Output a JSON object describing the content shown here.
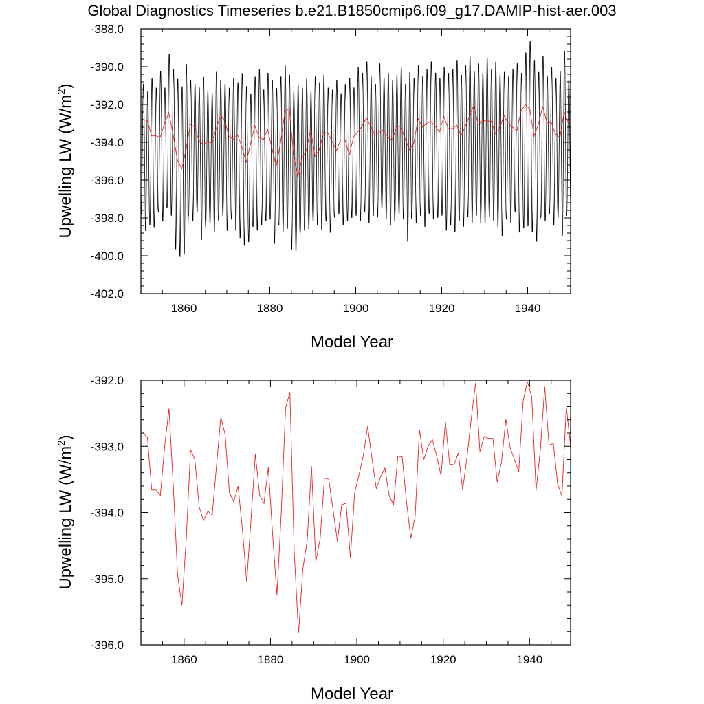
{
  "figure_title": "Global Diagnostics Timeseries b.e21.B1850cmip6.f09_g17.DAMIP-hist-aer.003",
  "colors": {
    "monthly": "#000000",
    "annual": "#e8201e"
  },
  "chart_data": [
    {
      "type": "line",
      "xlabel": "Model Year",
      "ylabel": "Upwelling LW (W/m2)",
      "ylabel_main": "Upwelling LW (W/m",
      "ylabel_sup": "2",
      "ylabel_end": ")",
      "xlim": [
        1850,
        1950
      ],
      "ylim": [
        -402,
        -388
      ],
      "xticks": [
        1860,
        1880,
        1900,
        1920,
        1940
      ],
      "xtick_labels": [
        "1860",
        "1880",
        "1900",
        "1920",
        "1940"
      ],
      "yticks": [
        -402,
        -400,
        -398,
        -396,
        -394,
        -392,
        -390,
        -388
      ],
      "ytick_labels": [
        "-402.0",
        "-400.0",
        "-398.0",
        "-396.0",
        "-394.0",
        "-392.0",
        "-390.0",
        "-388.0"
      ],
      "grid": false,
      "series": [
        {
          "style": "monthly",
          "seasonal_cycle": "annual",
          "start_year": 1850,
          "annual_minima": [
            -397.9,
            -398.8,
            -398.5,
            -398.6,
            -397.8,
            -398.3,
            -397.6,
            -398.0,
            -399.8,
            -400.2,
            -400.1,
            -398.0,
            -398.3,
            -397.8,
            -399.3,
            -398.6,
            -398.4,
            -398.9,
            -398.3,
            -398.0,
            -398.8,
            -398.2,
            -398.8,
            -399.2,
            -399.6,
            -399.4,
            -398.6,
            -398.8,
            -398.5,
            -398.3,
            -398.2,
            -399.5,
            -398.5,
            -398.9,
            -398.7,
            -399.8,
            -399.9,
            -398.9,
            -398.8,
            -398.7,
            -398.3,
            -398.5,
            -398.8,
            -398.3,
            -398.9,
            -398.1,
            -397.9,
            -398.5,
            -398.3,
            -398.1,
            -398.0,
            -398.3,
            -397.8,
            -398.4,
            -398.0,
            -398.1,
            -397.6,
            -398.2,
            -398.5,
            -398.3,
            -397.9,
            -398.2,
            -399.4,
            -397.8,
            -398.4,
            -398.0,
            -398.6,
            -397.9,
            -398.2,
            -398.1,
            -398.0,
            -398.8,
            -398.5,
            -398.9,
            -398.3,
            -398.6,
            -398.1,
            -398.4,
            -398.0,
            -398.4,
            -398.4,
            -398.1,
            -398.3,
            -398.6,
            -399.1,
            -398.2,
            -398.4,
            -397.8,
            -398.9,
            -398.7,
            -398.6,
            -398.9,
            -399.4,
            -398.1,
            -398.3,
            -397.9,
            -398.5,
            -398.1,
            -399.1,
            -398.0
          ],
          "annual_maxima": [
            -390.8,
            -391.2,
            -390.5,
            -391.0,
            -390.1,
            -391.0,
            -389.2,
            -390.0,
            -390.5,
            -390.9,
            -389.7,
            -390.6,
            -390.8,
            -391.0,
            -390.4,
            -391.2,
            -391.3,
            -390.1,
            -390.6,
            -390.8,
            -391.0,
            -390.5,
            -390.7,
            -390.2,
            -390.9,
            -391.3,
            -390.4,
            -390.0,
            -391.1,
            -390.2,
            -390.6,
            -391.0,
            -390.4,
            -389.8,
            -390.3,
            -391.2,
            -390.8,
            -391.0,
            -390.5,
            -391.2,
            -390.4,
            -390.7,
            -390.3,
            -391.0,
            -391.1,
            -390.6,
            -391.3,
            -390.8,
            -390.5,
            -391.0,
            -389.9,
            -390.2,
            -389.6,
            -390.4,
            -390.8,
            -389.7,
            -390.5,
            -390.2,
            -390.6,
            -390.3,
            -389.9,
            -390.8,
            -390.1,
            -390.5,
            -389.8,
            -390.4,
            -390.0,
            -389.6,
            -390.2,
            -390.5,
            -389.9,
            -390.2,
            -390.0,
            -389.5,
            -390.3,
            -389.8,
            -389.3,
            -390.1,
            -389.7,
            -390.2,
            -389.4,
            -390.0,
            -389.6,
            -390.3,
            -390.1,
            -390.4,
            -390.0,
            -389.7,
            -390.2,
            -389.1,
            -388.5,
            -389.5,
            -390.1,
            -389.3,
            -390.4,
            -389.9,
            -390.5,
            -390.1,
            -389.0,
            -390.6
          ]
        },
        {
          "style": "annual",
          "x": [
            1850.5,
            1851.5,
            1852.5,
            1853.5,
            1854.5,
            1855.5,
            1856.5,
            1857.5,
            1858.5,
            1859.5,
            1860.5,
            1861.5,
            1862.5,
            1863.5,
            1864.5,
            1865.5,
            1866.5,
            1867.5,
            1868.5,
            1869.5,
            1870.5,
            1871.5,
            1872.5,
            1873.5,
            1874.5,
            1875.5,
            1876.5,
            1877.5,
            1878.5,
            1879.5,
            1880.5,
            1881.5,
            1882.5,
            1883.5,
            1884.5,
            1885.5,
            1886.5,
            1887.5,
            1888.5,
            1889.5,
            1890.5,
            1891.5,
            1892.5,
            1893.5,
            1894.5,
            1895.5,
            1896.5,
            1897.5,
            1898.5,
            1899.5,
            1900.5,
            1901.5,
            1902.5,
            1903.5,
            1904.5,
            1905.5,
            1906.5,
            1907.5,
            1908.5,
            1909.5,
            1910.5,
            1911.5,
            1912.5,
            1913.5,
            1914.5,
            1915.5,
            1916.5,
            1917.5,
            1918.5,
            1919.5,
            1920.5,
            1921.5,
            1922.5,
            1923.5,
            1924.5,
            1925.5,
            1926.5,
            1927.5,
            1928.5,
            1929.5,
            1930.5,
            1931.5,
            1932.5,
            1933.5,
            1934.5,
            1935.5,
            1936.5,
            1937.5,
            1938.5,
            1939.5,
            1940.5,
            1941.5,
            1942.5,
            1943.5,
            1944.5,
            1945.5,
            1946.5,
            1947.5,
            1948.5,
            1949.5
          ],
          "values": [
            -392.8,
            -392.86,
            -393.66,
            -393.66,
            -393.74,
            -393.0,
            -392.43,
            -393.6,
            -394.95,
            -395.4,
            -394.4,
            -393.05,
            -393.2,
            -393.92,
            -394.12,
            -393.98,
            -394.04,
            -393.3,
            -392.56,
            -392.82,
            -393.7,
            -393.84,
            -393.6,
            -394.25,
            -395.05,
            -394.1,
            -393.12,
            -393.74,
            -393.86,
            -393.32,
            -394.33,
            -395.25,
            -394.0,
            -392.42,
            -392.18,
            -394.6,
            -395.82,
            -394.85,
            -394.43,
            -393.3,
            -394.74,
            -394.4,
            -393.48,
            -393.5,
            -393.96,
            -394.44,
            -393.88,
            -393.86,
            -394.68,
            -393.7,
            -393.43,
            -393.14,
            -392.7,
            -393.18,
            -393.64,
            -393.46,
            -393.33,
            -393.75,
            -393.88,
            -393.15,
            -393.16,
            -393.84,
            -394.39,
            -394.06,
            -392.75,
            -393.2,
            -393.0,
            -392.9,
            -393.15,
            -393.44,
            -392.63,
            -393.27,
            -393.28,
            -393.1,
            -393.66,
            -393.17,
            -392.58,
            -392.04,
            -393.08,
            -392.85,
            -392.88,
            -392.88,
            -393.54,
            -393.24,
            -392.59,
            -393.02,
            -393.2,
            -393.38,
            -392.32,
            -392.02,
            -392.25,
            -393.67,
            -393.05,
            -392.1,
            -392.98,
            -392.96,
            -393.57,
            -393.75,
            -392.4,
            -393.0
          ]
        }
      ]
    },
    {
      "type": "line",
      "xlabel": "Model Year",
      "ylabel": "Upwelling LW (W/m2)",
      "ylabel_main": "Upwelling LW (W/m",
      "ylabel_sup": "2",
      "ylabel_end": ")",
      "xlim": [
        1850,
        1949.5
      ],
      "ylim": [
        -396,
        -392
      ],
      "xticks": [
        1860,
        1880,
        1900,
        1920,
        1940
      ],
      "xtick_labels": [
        "1860",
        "1880",
        "1900",
        "1920",
        "1940"
      ],
      "yticks": [
        -396,
        -395,
        -394,
        -393,
        -392
      ],
      "ytick_labels": [
        "-396.0",
        "-395.0",
        "-394.0",
        "-393.0",
        "-392.0"
      ],
      "grid": false,
      "series": [
        {
          "style": "annual",
          "x": [
            1850.5,
            1851.5,
            1852.5,
            1853.5,
            1854.5,
            1855.5,
            1856.5,
            1857.5,
            1858.5,
            1859.5,
            1860.5,
            1861.5,
            1862.5,
            1863.5,
            1864.5,
            1865.5,
            1866.5,
            1867.5,
            1868.5,
            1869.5,
            1870.5,
            1871.5,
            1872.5,
            1873.5,
            1874.5,
            1875.5,
            1876.5,
            1877.5,
            1878.5,
            1879.5,
            1880.5,
            1881.5,
            1882.5,
            1883.5,
            1884.5,
            1885.5,
            1886.5,
            1887.5,
            1888.5,
            1889.5,
            1890.5,
            1891.5,
            1892.5,
            1893.5,
            1894.5,
            1895.5,
            1896.5,
            1897.5,
            1898.5,
            1899.5,
            1900.5,
            1901.5,
            1902.5,
            1903.5,
            1904.5,
            1905.5,
            1906.5,
            1907.5,
            1908.5,
            1909.5,
            1910.5,
            1911.5,
            1912.5,
            1913.5,
            1914.5,
            1915.5,
            1916.5,
            1917.5,
            1918.5,
            1919.5,
            1920.5,
            1921.5,
            1922.5,
            1923.5,
            1924.5,
            1925.5,
            1926.5,
            1927.5,
            1928.5,
            1929.5,
            1930.5,
            1931.5,
            1932.5,
            1933.5,
            1934.5,
            1935.5,
            1936.5,
            1937.5,
            1938.5,
            1939.5,
            1940.5,
            1941.5,
            1942.5,
            1943.5,
            1944.5,
            1945.5,
            1946.5,
            1947.5,
            1948.5,
            1949.5
          ],
          "values": [
            -392.8,
            -392.86,
            -393.66,
            -393.66,
            -393.74,
            -393.0,
            -392.43,
            -393.6,
            -394.95,
            -395.4,
            -394.4,
            -393.05,
            -393.2,
            -393.92,
            -394.12,
            -393.98,
            -394.04,
            -393.3,
            -392.56,
            -392.82,
            -393.7,
            -393.84,
            -393.6,
            -394.25,
            -395.05,
            -394.1,
            -393.12,
            -393.74,
            -393.86,
            -393.32,
            -394.33,
            -395.25,
            -394.0,
            -392.42,
            -392.18,
            -394.6,
            -395.82,
            -394.85,
            -394.43,
            -393.3,
            -394.74,
            -394.4,
            -393.48,
            -393.5,
            -393.96,
            -394.44,
            -393.88,
            -393.86,
            -394.68,
            -393.7,
            -393.43,
            -393.14,
            -392.7,
            -393.18,
            -393.64,
            -393.46,
            -393.33,
            -393.75,
            -393.88,
            -393.15,
            -393.16,
            -393.84,
            -394.39,
            -394.06,
            -392.75,
            -393.2,
            -393.0,
            -392.9,
            -393.15,
            -393.44,
            -392.63,
            -393.27,
            -393.28,
            -393.1,
            -393.66,
            -393.17,
            -392.58,
            -392.04,
            -393.08,
            -392.85,
            -392.88,
            -392.88,
            -393.54,
            -393.24,
            -392.59,
            -393.02,
            -393.2,
            -393.38,
            -392.32,
            -392.02,
            -392.25,
            -393.67,
            -393.05,
            -392.1,
            -392.98,
            -392.96,
            -393.57,
            -393.75,
            -392.4,
            -393.0
          ]
        }
      ]
    }
  ]
}
